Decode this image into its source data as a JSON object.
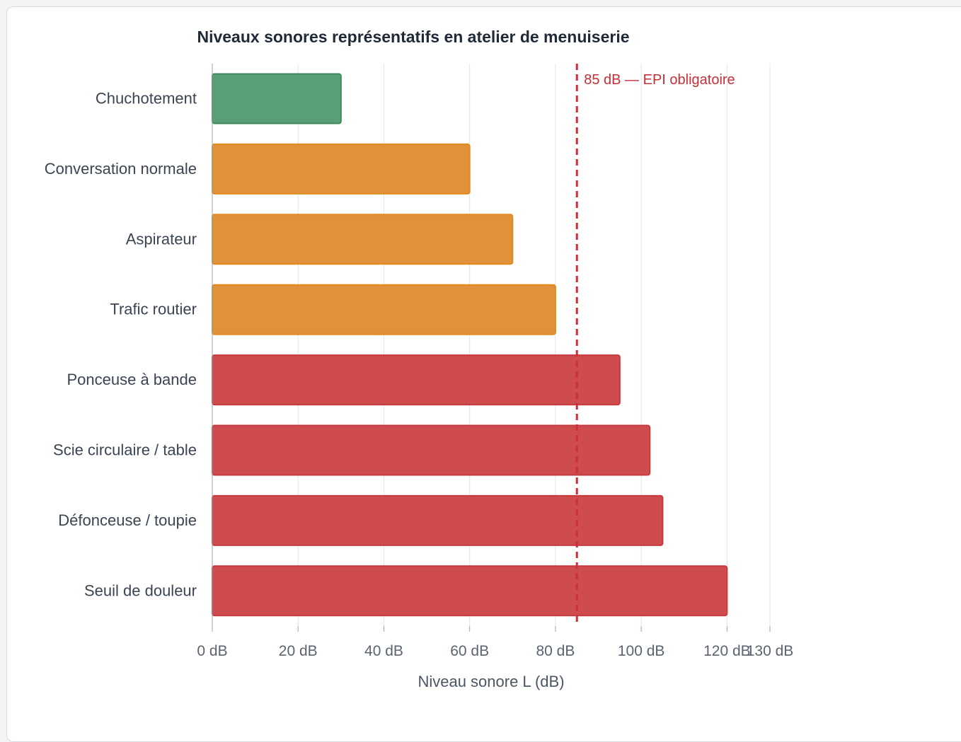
{
  "chart_data": {
    "type": "bar",
    "orientation": "horizontal",
    "title": "Niveaux sonores représentatifs en atelier de menuiserie",
    "xlabel": "Niveau sonore L (dB)",
    "ylabel": "",
    "xlim": [
      0,
      130
    ],
    "grid": true,
    "categories": [
      "Chuchotement",
      "Conversation normale",
      "Aspirateur",
      "Trafic routier",
      "Ponceuse à bande",
      "Scie circulaire / table",
      "Défonceuse / toupie",
      "Seuil de douleur"
    ],
    "values": [
      30,
      60,
      70,
      80,
      95,
      102,
      105,
      120
    ],
    "bar_colors": [
      "#5a9e76",
      "#e0923a",
      "#e0923a",
      "#e0923a",
      "#ce4b4e",
      "#ce4b4e",
      "#ce4b4e",
      "#ce4b4e"
    ],
    "bar_edge_colors": [
      "#3f8a5c",
      "#e08a1f",
      "#e08a1f",
      "#e08a1f",
      "#c73a3e",
      "#c73a3e",
      "#c73a3e",
      "#c73a3e"
    ],
    "x_ticks": [
      0,
      20,
      40,
      60,
      80,
      100,
      120,
      130
    ],
    "x_tick_labels": [
      "0 dB",
      "20 dB",
      "40 dB",
      "60 dB",
      "80 dB",
      "100 dB",
      "120 dB",
      "130 dB"
    ],
    "threshold": {
      "value": 85,
      "label": "85 dB — EPI obligatoire",
      "color": "#cc2f37"
    }
  },
  "colors": {
    "grid": "#dfe5ee",
    "axis": "#9aa3ad"
  }
}
